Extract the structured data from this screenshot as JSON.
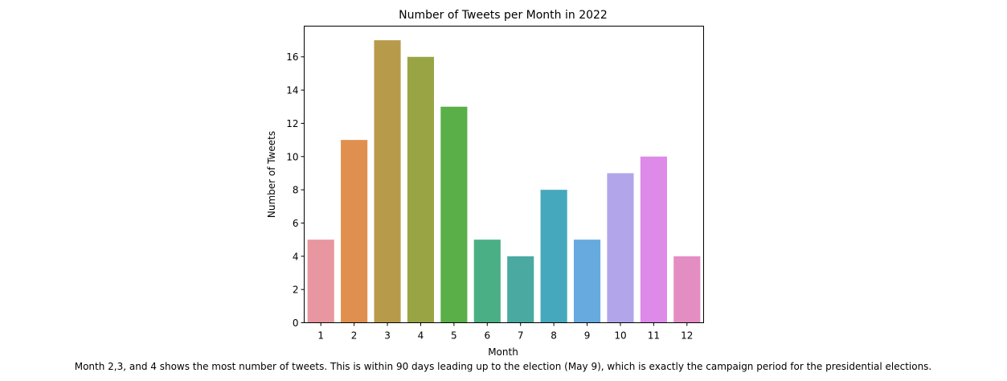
{
  "chart_data": {
    "type": "bar",
    "title": "Number of Tweets per Month in 2022",
    "xlabel": "Month",
    "ylabel": "Number of Tweets",
    "categories": [
      "1",
      "2",
      "3",
      "4",
      "5",
      "6",
      "7",
      "8",
      "9",
      "10",
      "11",
      "12"
    ],
    "values": [
      5,
      11,
      17,
      16,
      13,
      5,
      4,
      8,
      5,
      9,
      10,
      4
    ],
    "colors": [
      "#e8969f",
      "#e0904e",
      "#b89b4a",
      "#99a545",
      "#5aaf48",
      "#4baf85",
      "#4aaaa2",
      "#46a8bd",
      "#66aadf",
      "#b3a5ea",
      "#dd8ae8",
      "#e48dc3"
    ],
    "ylim": [
      0,
      17.85
    ],
    "yticks": [
      0,
      2,
      4,
      6,
      8,
      10,
      12,
      14,
      16
    ],
    "grid": false,
    "caption": "Month 2,3, and 4 shows the most number of tweets. This is within 90 days leading up to the election (May 9), which is exactly the campaign period for the presidential elections."
  }
}
